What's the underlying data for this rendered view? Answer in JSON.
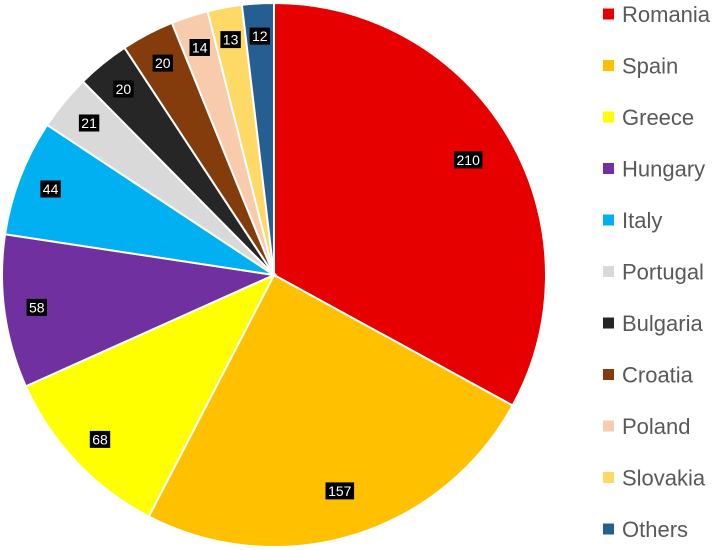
{
  "chart_data": {
    "type": "pie",
    "title": "",
    "categories": [
      "Romania",
      "Spain",
      "Greece",
      "Hungary",
      "Italy",
      "Portugal",
      "Bulgaria",
      "Croatia",
      "Poland",
      "Slovakia",
      "Others"
    ],
    "values": [
      210,
      157,
      68,
      58,
      44,
      21,
      20,
      20,
      14,
      13,
      12
    ],
    "colors": [
      "#e60000",
      "#ffc000",
      "#ffff00",
      "#7030a0",
      "#00b0f0",
      "#d9d9d9",
      "#262626",
      "#843c0c",
      "#f8cbad",
      "#ffd966",
      "#255e91"
    ],
    "start": "12 o'clock",
    "direction": "clockwise",
    "data_labels": "value, white text on black box",
    "legend_position": "right"
  }
}
